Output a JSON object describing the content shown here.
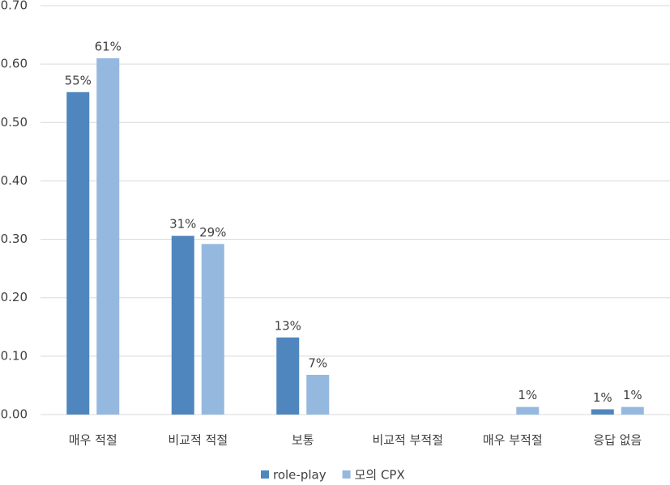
{
  "chart_data": {
    "type": "bar",
    "categories": [
      "매우 적절",
      "비교적 적절",
      "보통",
      "비교적 부적절",
      "매우 부적절",
      "응답 없음"
    ],
    "series": [
      {
        "name": "role-play",
        "color": "#4f86bd",
        "values": [
          0.552,
          0.306,
          0.132,
          null,
          null,
          0.009
        ],
        "value_labels": [
          "55%",
          "31%",
          "13%",
          null,
          null,
          "1%"
        ]
      },
      {
        "name": "모의 CPX",
        "color": "#95b8df",
        "values": [
          0.61,
          0.292,
          0.068,
          null,
          0.013,
          0.013
        ],
        "value_labels": [
          "61%",
          "29%",
          "7%",
          null,
          "1%",
          "1%"
        ]
      }
    ],
    "ylim": [
      0,
      0.7
    ],
    "yticks": [
      {
        "value": 0,
        "label": "0.00"
      },
      {
        "value": 0.1,
        "label": "0.10"
      },
      {
        "value": 0.2,
        "label": "0.20"
      },
      {
        "value": 0.3,
        "label": "0.30"
      },
      {
        "value": 0.4,
        "label": "0.40"
      },
      {
        "value": 0.5,
        "label": "0.50"
      },
      {
        "value": 0.6,
        "label": "0.60"
      },
      {
        "value": 0.7,
        "label": "0.70"
      }
    ],
    "grid": true,
    "legend": "bottom"
  }
}
